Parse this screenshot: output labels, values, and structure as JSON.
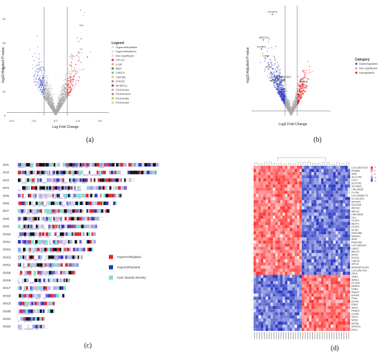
{
  "panel_a": {
    "caption": "(a)",
    "xlabel": "Log Fold Change",
    "ylabel": "-log10 Adjusted P-value",
    "x_ticks": [
      "-5.0",
      "-2.5",
      "0.0",
      "2.5",
      "5.0"
    ],
    "y_ticks": [
      "0",
      "10",
      "20",
      "30",
      "40"
    ],
    "legend_title": "Legend",
    "legend_items": [
      {
        "label": "Hypermethylation",
        "color": "#dddddd"
      },
      {
        "label": "Hypomethylation",
        "color": "#dddddd"
      },
      {
        "label": "Non-significant",
        "color": "#dddddd"
      },
      {
        "label": "CPLX4",
        "color": "#e63946"
      },
      {
        "label": "LCAT",
        "color": "#f4a261"
      },
      {
        "label": "BAD",
        "color": "#2a9d8f"
      },
      {
        "label": "LRRC4",
        "color": "#8ab17d"
      },
      {
        "label": "C8orf82",
        "color": "#e9c46a"
      },
      {
        "label": "RTKN2",
        "color": "#b5838d"
      },
      {
        "label": "MYBPC3",
        "color": "#6d597a"
      },
      {
        "label": "PCDHGA4",
        "color": "#c9ada7"
      },
      {
        "label": "PCDHGA12",
        "color": "#9a8c98"
      },
      {
        "label": "PCDHGB2",
        "color": "#a7c957"
      },
      {
        "label": "PCDHGA9",
        "color": "#f2cc8f"
      }
    ],
    "colors": {
      "up": "#e31a1c",
      "down": "#3547c8",
      "ns": "#a8a8a8"
    }
  },
  "panel_b": {
    "caption": "(b)",
    "xlabel": "Log2 Fold Change",
    "ylabel": "-log10 Adjusted P-value",
    "legend_title": "Category",
    "legend_items": [
      {
        "label": "Downregulated",
        "color": "#3547c8"
      },
      {
        "label": "Non-significant",
        "color": "#a8a8a8"
      },
      {
        "label": "Upregulated",
        "color": "#e31a1c"
      }
    ],
    "gene_labels": [
      "OTOP3",
      "BEST4",
      "OTOP2",
      "CA7",
      "SPIB",
      "FAM135B",
      "LINC00002",
      "ABCG2",
      "SCGN",
      "SMAL2"
    ]
  },
  "panel_c": {
    "caption": "(c)",
    "chromosomes": [
      "chr1",
      "chr2",
      "chr3",
      "chr4",
      "chr5",
      "chr6",
      "chr7",
      "chr8",
      "chr9",
      "chr10",
      "chr11",
      "chr12",
      "chr13",
      "chr14",
      "chr15",
      "chr16",
      "chr17",
      "chr18",
      "chr19",
      "chr20",
      "chr21",
      "chr22"
    ],
    "legend_items": [
      {
        "label": "Hypermethylated",
        "color": "#e8232a"
      },
      {
        "label": "Hypomethylated",
        "color": "#1d35c9"
      },
      {
        "label": "CpG Islands Density",
        "color": "#7fe0cf"
      }
    ]
  },
  "panel_d": {
    "caption": "(d)",
    "genes": [
      "LOC105377002",
      "PRDM8",
      "SIM2",
      "SLC17A8",
      "CALC",
      "SULT1A2",
      "SLC26A3",
      "LINC00035",
      "CLCA4",
      "LOC105369774",
      "CLCA4-AS1",
      "SPILRP1",
      "GUCA2B",
      "ABCG8",
      "ABCG2",
      "LINC00002",
      "CA7",
      "OTOP3",
      "BEST4",
      "OTOP2",
      "SCGN",
      "FAM135B",
      "MS4A12",
      "SPIB",
      "FAM135A",
      "LOC10537407",
      "LRRC7",
      "ABCG2",
      "NXPH",
      "SCN7A",
      "LINC00",
      "KRT20",
      "ARHGAP15-AS1",
      "LOC10537726",
      "FRK9",
      "TPM4",
      "SMAL2",
      "PCLIN4",
      "NEDD3",
      "CDR3",
      "KIAA27",
      "EPHA4",
      "ITIH4",
      "ESTR1",
      "ESM1",
      "WNT2",
      "FRMD2",
      "CLDN1",
      "TRIT3",
      "NFKB",
      "KRT80",
      "SPRYD1",
      "PKD1"
    ],
    "legend_ticks": [
      "4",
      "2",
      "0",
      "-2",
      "-4"
    ],
    "colors": {
      "high": "#e0282b",
      "mid": "#ffffff",
      "low": "#2b3bbf"
    }
  }
}
